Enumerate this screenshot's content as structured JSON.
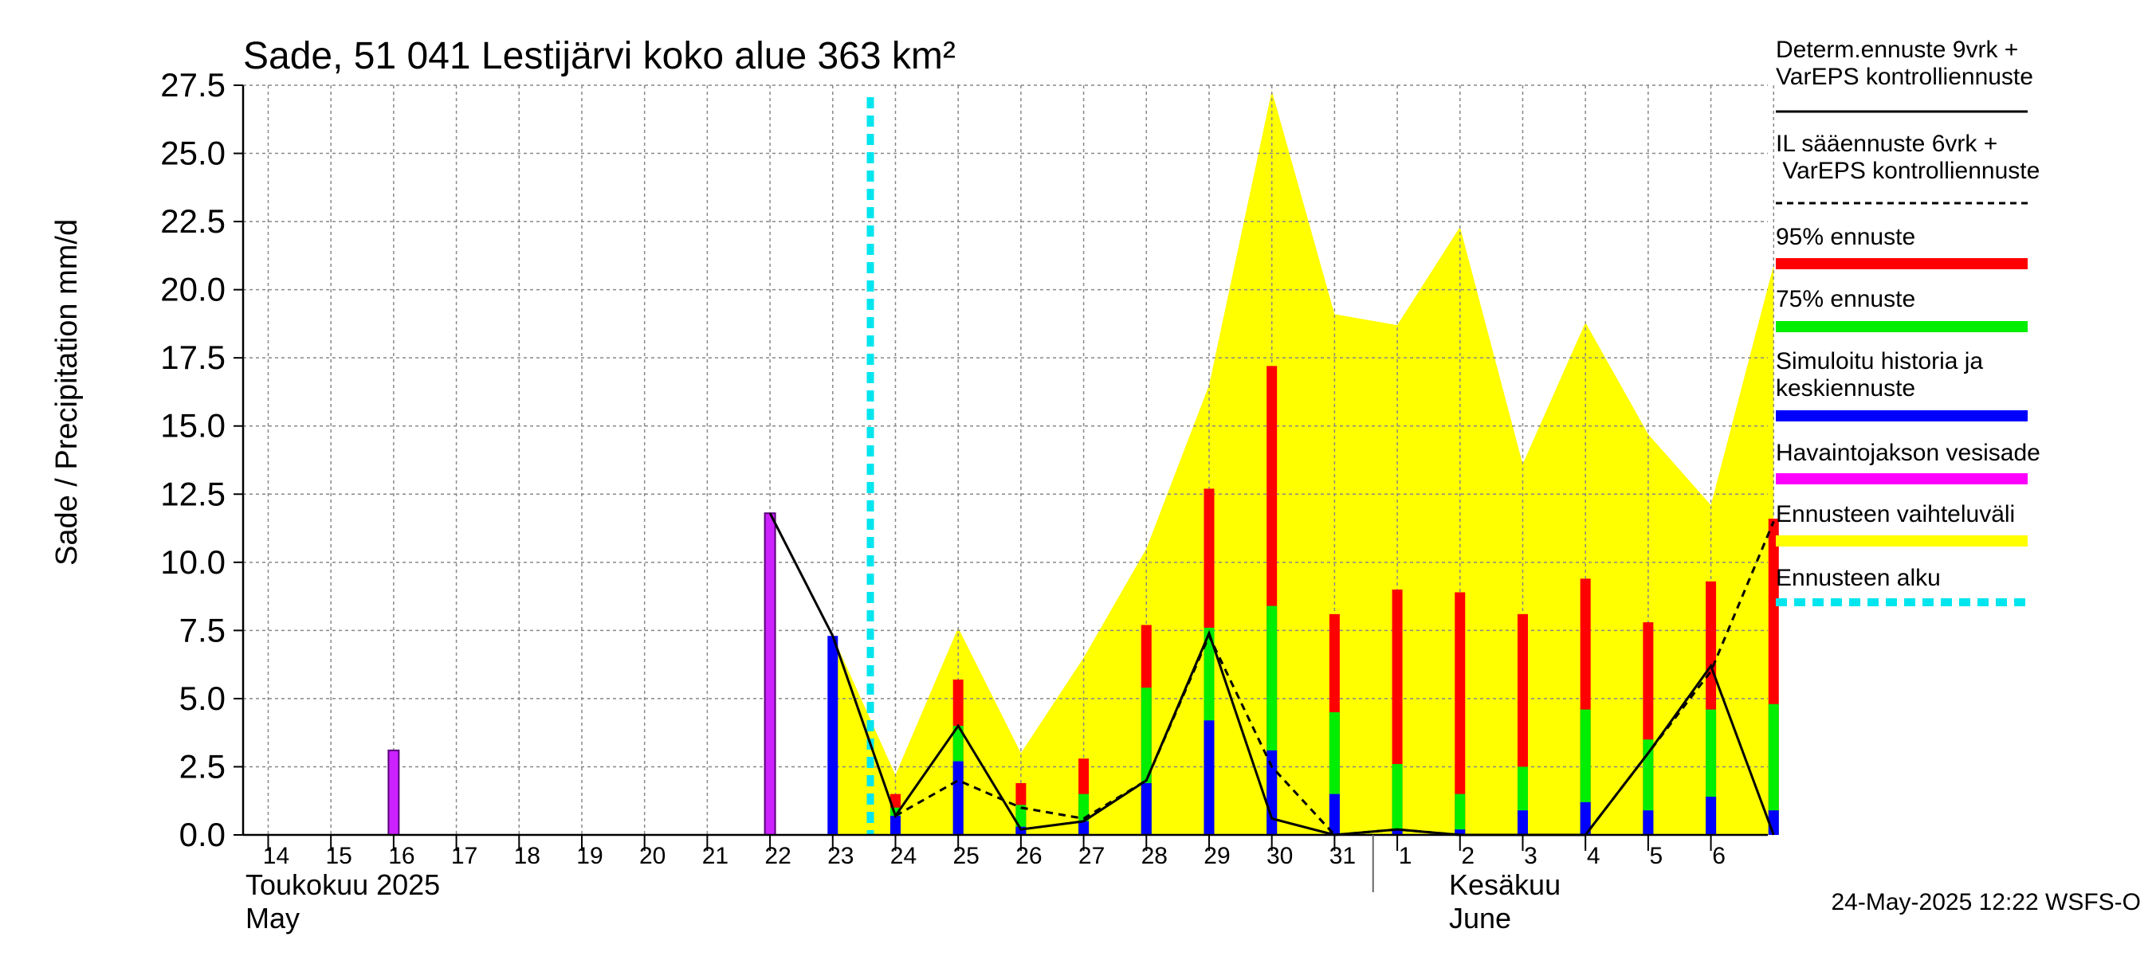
{
  "chart_data": {
    "type": "bar",
    "title": "Sade, 51 041 Lestijärvi koko alue 363 km²",
    "ylabel": "Sade / Precipitation   mm/d",
    "ylim": [
      0,
      27.5
    ],
    "y_ticks": [
      "0.0",
      "2.5",
      "5.0",
      "7.5",
      "10.0",
      "12.5",
      "15.0",
      "17.5",
      "20.0",
      "22.5",
      "25.0",
      "27.5"
    ],
    "x_ticks": [
      "14",
      "15",
      "16",
      "17",
      "18",
      "19",
      "20",
      "21",
      "22",
      "23",
      "24",
      "25",
      "26",
      "27",
      "28",
      "29",
      "30",
      "31",
      "1",
      "2",
      "3",
      "4",
      "5",
      "6"
    ],
    "month_labels": {
      "may_fi": "Toukokuu  2025",
      "may_en": "May",
      "june_fi": "Kesäkuu",
      "june_en": "June"
    },
    "forecast_start_day": 23.6,
    "observed": [
      {
        "day": 16,
        "value": 3.1
      },
      {
        "day": 22,
        "value": 11.8
      }
    ],
    "simulated_mean": [
      {
        "day": 23,
        "value": 7.3
      },
      {
        "day": 24,
        "value": 0.7
      },
      {
        "day": 25,
        "value": 2.7
      },
      {
        "day": 26,
        "value": 0.3
      },
      {
        "day": 27,
        "value": 0.5
      },
      {
        "day": 28,
        "value": 1.9
      },
      {
        "day": 29,
        "value": 4.2
      },
      {
        "day": 30,
        "value": 3.1
      },
      {
        "day": 31,
        "value": 1.5
      },
      {
        "day": 32,
        "value": 0.2
      },
      {
        "day": 33,
        "value": 0.2
      },
      {
        "day": 34,
        "value": 0.9
      },
      {
        "day": 35,
        "value": 1.2
      },
      {
        "day": 36,
        "value": 0.9
      },
      {
        "day": 37,
        "value": 1.4
      },
      {
        "day": 38,
        "value": 0.9
      }
    ],
    "p75": [
      {
        "day": 24,
        "value": 1.0
      },
      {
        "day": 25,
        "value": 4.0
      },
      {
        "day": 26,
        "value": 1.1
      },
      {
        "day": 27,
        "value": 1.5
      },
      {
        "day": 28,
        "value": 5.4
      },
      {
        "day": 29,
        "value": 7.6
      },
      {
        "day": 30,
        "value": 8.4
      },
      {
        "day": 31,
        "value": 4.5
      },
      {
        "day": 32,
        "value": 2.6
      },
      {
        "day": 33,
        "value": 1.5
      },
      {
        "day": 34,
        "value": 2.5
      },
      {
        "day": 35,
        "value": 4.6
      },
      {
        "day": 36,
        "value": 3.5
      },
      {
        "day": 37,
        "value": 4.6
      },
      {
        "day": 38,
        "value": 4.8
      }
    ],
    "p95": [
      {
        "day": 24,
        "value": 1.5
      },
      {
        "day": 25,
        "value": 5.7
      },
      {
        "day": 26,
        "value": 1.9
      },
      {
        "day": 27,
        "value": 2.8
      },
      {
        "day": 28,
        "value": 7.7
      },
      {
        "day": 29,
        "value": 12.7
      },
      {
        "day": 30,
        "value": 17.2
      },
      {
        "day": 31,
        "value": 8.1
      },
      {
        "day": 32,
        "value": 9.0
      },
      {
        "day": 33,
        "value": 8.9
      },
      {
        "day": 34,
        "value": 8.1
      },
      {
        "day": 35,
        "value": 9.4
      },
      {
        "day": 36,
        "value": 7.8
      },
      {
        "day": 37,
        "value": 9.3
      },
      {
        "day": 38,
        "value": 11.6
      }
    ],
    "range_max": [
      {
        "day": 23,
        "value": 7.3
      },
      {
        "day": 24,
        "value": 2.2
      },
      {
        "day": 25,
        "value": 7.6
      },
      {
        "day": 26,
        "value": 3.0
      },
      {
        "day": 27,
        "value": 6.5
      },
      {
        "day": 28,
        "value": 10.5
      },
      {
        "day": 29,
        "value": 16.5
      },
      {
        "day": 30,
        "value": 27.3
      },
      {
        "day": 31,
        "value": 19.1
      },
      {
        "day": 32,
        "value": 18.7
      },
      {
        "day": 33,
        "value": 22.3
      },
      {
        "day": 34,
        "value": 13.6
      },
      {
        "day": 35,
        "value": 18.8
      },
      {
        "day": 36,
        "value": 14.7
      },
      {
        "day": 37,
        "value": 12.1
      },
      {
        "day": 38,
        "value": 20.9
      }
    ],
    "determ_line": [
      {
        "day": 22,
        "value": 11.8
      },
      {
        "day": 23,
        "value": 7.3
      },
      {
        "day": 24,
        "value": 0.7
      },
      {
        "day": 25,
        "value": 4.0
      },
      {
        "day": 26,
        "value": 0.2
      },
      {
        "day": 27,
        "value": 0.5
      },
      {
        "day": 28,
        "value": 2.0
      },
      {
        "day": 29,
        "value": 7.4
      },
      {
        "day": 30,
        "value": 0.6
      },
      {
        "day": 31,
        "value": 0.0
      },
      {
        "day": 32,
        "value": 0.2
      },
      {
        "day": 33,
        "value": 0.0
      },
      {
        "day": 34,
        "value": 0.0
      },
      {
        "day": 35,
        "value": 0.0
      },
      {
        "day": 36,
        "value": 3.0
      },
      {
        "day": 37,
        "value": 6.2
      },
      {
        "day": 38,
        "value": 0.0
      }
    ],
    "il_line": [
      {
        "day": 24,
        "value": 0.7
      },
      {
        "day": 25,
        "value": 2.0
      },
      {
        "day": 26,
        "value": 1.0
      },
      {
        "day": 27,
        "value": 0.6
      },
      {
        "day": 28,
        "value": 2.0
      },
      {
        "day": 29,
        "value": 7.3
      },
      {
        "day": 30,
        "value": 2.5
      },
      {
        "day": 31,
        "value": 0.0
      },
      {
        "day": 32,
        "value": 0.2
      },
      {
        "day": 33,
        "value": 0.0
      },
      {
        "day": 34,
        "value": 0.0
      },
      {
        "day": 35,
        "value": 0.0
      },
      {
        "day": 36,
        "value": 3.0
      },
      {
        "day": 37,
        "value": 6.0
      },
      {
        "day": 38,
        "value": 11.5
      }
    ],
    "legend": [
      {
        "label": "Determ.ennuste 9vrk +\nVarEPS kontrolliennuste",
        "kind": "solid-line",
        "color": "#000000"
      },
      {
        "label": "IL sääennuste 6vrk  +\n  VarEPS kontrolliennuste",
        "kind": "dashed-line",
        "color": "#000000"
      },
      {
        "label": "95% ennuste",
        "kind": "thick",
        "color": "#ff0000"
      },
      {
        "label": "75% ennuste",
        "kind": "thick",
        "color": "#00ee00"
      },
      {
        "label": "Simuloitu historia ja\nkeskiennuste",
        "kind": "thick",
        "color": "#0000ff"
      },
      {
        "label": "Havaintojakson vesisade",
        "kind": "thick",
        "color": "#ff00ff"
      },
      {
        "label": "Ennusteen vaihteluväli",
        "kind": "thick",
        "color": "#ffff00"
      },
      {
        "label": "Ennusteen alku",
        "kind": "dashed-thick",
        "color": "#00e5ee"
      }
    ],
    "colors": {
      "range": "#ffff00",
      "p95": "#ff0000",
      "p75": "#00ee00",
      "mean": "#0000ff",
      "observed": "#cc22ff",
      "forecast_start": "#00e5ee",
      "grid": "#888888"
    }
  },
  "footer": "24-May-2025 12:22 WSFS-O"
}
